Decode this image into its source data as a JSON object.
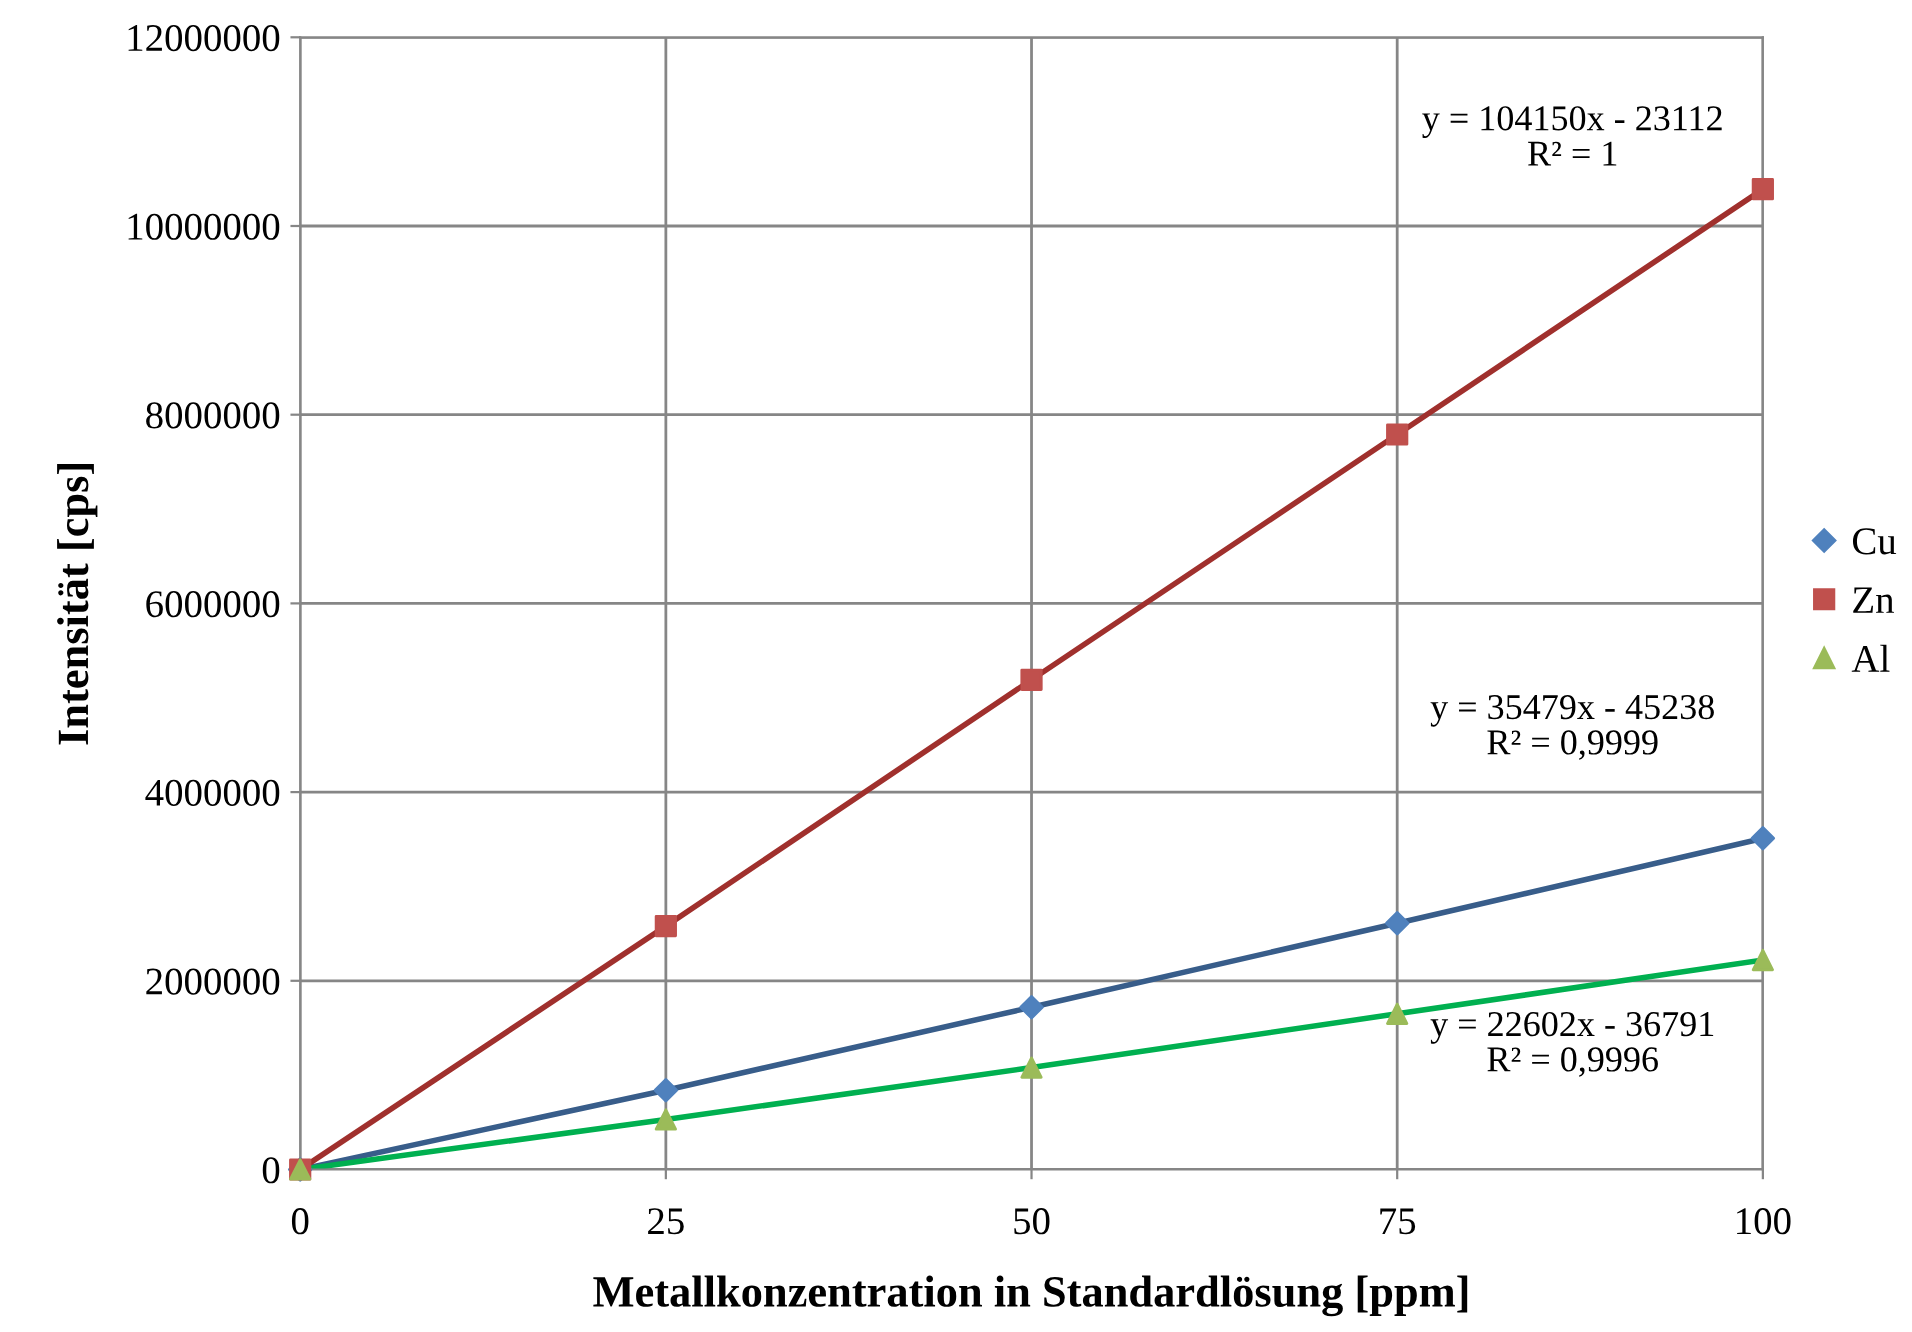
{
  "chart_data": {
    "type": "line",
    "xlabel": "Metallkonzentration in Standardlösung [ppm]",
    "ylabel": "Intensität [cps]",
    "x": [
      0,
      25,
      50,
      75,
      100
    ],
    "series": [
      {
        "color": "#385d8a",
        "marker": "none",
        "values": [
          0,
          840000,
          1720000,
          2610000,
          3510000
        ]
      },
      {
        "color": "#a0302d",
        "marker": "none",
        "values": [
          0,
          2580000,
          5190000,
          7790000,
          10390000
        ]
      },
      {
        "color": "#00b050",
        "marker": "none",
        "values": [
          0,
          530000,
          1080000,
          1650000,
          2220000
        ]
      },
      {
        "type": "scatter",
        "name": "Cu",
        "color": "#4f81bd",
        "marker": "diamond",
        "values": [
          0,
          840000,
          1720000,
          2610000,
          3510000
        ]
      },
      {
        "type": "scatter",
        "name": "Zn",
        "color": "#c0504d",
        "marker": "square",
        "values": [
          0,
          2580000,
          5190000,
          7790000,
          10390000
        ]
      },
      {
        "type": "scatter",
        "name": "Al",
        "color": "#9bbb59",
        "marker": "triangle",
        "values": [
          0,
          530000,
          1080000,
          1650000,
          2220000
        ]
      }
    ],
    "annotations": [
      "y = 104150x - 23112\nR² = 1",
      "y = 35479x - 45238\nR² = 0,9999",
      "y = 22602x - 36791\nR² = 0,9996"
    ],
    "xlim": [
      0,
      100
    ],
    "xticks": [
      0,
      25,
      50,
      75,
      100
    ],
    "ylim": [
      0,
      12000000
    ],
    "yticks": [
      0,
      2000000,
      4000000,
      6000000,
      8000000,
      10000000,
      12000000
    ],
    "grid": true,
    "legend": "right"
  }
}
